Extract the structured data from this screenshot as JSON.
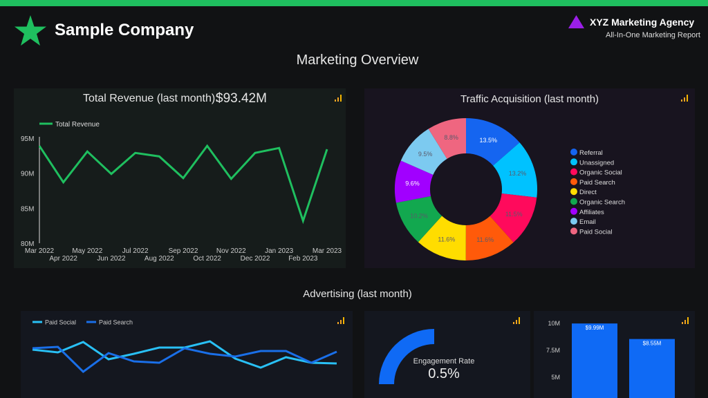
{
  "header": {
    "company": "Sample Company",
    "agency": "XYZ Marketing Agency",
    "report": "All-In-One Marketing Report",
    "page_title": "Marketing Overview",
    "accent": "#1fbf5f"
  },
  "revenue": {
    "title": "Total Revenue (last month):",
    "value": "$93.42M"
  },
  "traffic": {
    "title": "Traffic Acquisition (last month)"
  },
  "advertising": {
    "title": "Advertising (last month)"
  },
  "gauge": {
    "label": "Engagement Rate",
    "value": "0.5%",
    "fill": 0.5
  },
  "chart_data": [
    {
      "type": "line",
      "legend": [
        "Total Revenue"
      ],
      "ylim": [
        80,
        95
      ],
      "yticks": [
        "95M",
        "90M",
        "85M",
        "80M"
      ],
      "categories": [
        "Mar 2022",
        "Apr 2022",
        "May 2022",
        "Jun 2022",
        "Jul 2022",
        "Aug 2022",
        "Sep 2022",
        "Oct 2022",
        "Nov 2022",
        "Dec 2022",
        "Jan 2023",
        "Feb 2023",
        "Mar 2023"
      ],
      "series": [
        {
          "name": "Total Revenue",
          "color": "#1fbf5f",
          "values": [
            93.9,
            88.7,
            93.1,
            89.9,
            92.9,
            92.4,
            89.3,
            93.9,
            89.2,
            92.9,
            93.6,
            83.2,
            93.42
          ]
        }
      ]
    },
    {
      "type": "pie",
      "donut": true,
      "labels": [
        "Referral",
        "Unassigned",
        "Organic Social",
        "Paid Search",
        "Direct",
        "Organic Search",
        "Affiliates",
        "Email",
        "Paid Social"
      ],
      "values": [
        13.5,
        13.2,
        11.5,
        11.6,
        11.6,
        10.2,
        9.6,
        9.5,
        8.8
      ],
      "value_labels": [
        "13.5%",
        "13.2%",
        "11.5%",
        "11.6%",
        "11.6%",
        "10.2%",
        "9.6%",
        "9.5%",
        "8.8%"
      ],
      "colors": [
        "#1565f0",
        "#00c2ff",
        "#ff0a5c",
        "#ff5a0a",
        "#ffdd00",
        "#12a84f",
        "#a100ff",
        "#7ccaf0",
        "#ef6680"
      ],
      "legend": "right"
    },
    {
      "type": "line",
      "legend": [
        "Paid Social",
        "Paid Search"
      ],
      "series": [
        {
          "name": "Paid Social",
          "color": "#29c0f5",
          "values": [
            39,
            35,
            50,
            25,
            33,
            42,
            42,
            51,
            26,
            13,
            28,
            20,
            19
          ]
        },
        {
          "name": "Paid Search",
          "color": "#1a6fe8",
          "values": [
            41,
            43,
            7,
            34,
            22,
            20,
            41,
            33,
            29,
            37,
            37,
            20,
            36
          ]
        }
      ]
    },
    {
      "type": "bar",
      "color": "#0f6af5",
      "yticks": [
        "10M",
        "7.5M",
        "5M"
      ],
      "values": [
        9.99,
        8.55
      ],
      "value_labels": [
        "$9.99M",
        "$8.55M"
      ]
    }
  ]
}
